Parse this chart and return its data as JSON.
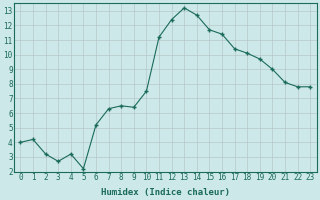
{
  "x": [
    0,
    1,
    2,
    3,
    4,
    5,
    6,
    7,
    8,
    9,
    10,
    11,
    12,
    13,
    14,
    15,
    16,
    17,
    18,
    19,
    20,
    21,
    22,
    23
  ],
  "y": [
    4.0,
    4.2,
    3.2,
    2.7,
    3.2,
    2.2,
    5.2,
    6.3,
    6.5,
    6.4,
    7.5,
    11.2,
    12.4,
    13.2,
    12.7,
    11.7,
    11.4,
    10.4,
    10.1,
    9.7,
    9.0,
    8.1,
    7.8,
    7.8
  ],
  "title": "",
  "xlabel": "Humidex (Indice chaleur)",
  "ylabel": "",
  "xlim": [
    -0.5,
    23.5
  ],
  "ylim": [
    2.0,
    13.5
  ],
  "yticks": [
    2,
    3,
    4,
    5,
    6,
    7,
    8,
    9,
    10,
    11,
    12,
    13
  ],
  "xticks": [
    0,
    1,
    2,
    3,
    4,
    5,
    6,
    7,
    8,
    9,
    10,
    11,
    12,
    13,
    14,
    15,
    16,
    17,
    18,
    19,
    20,
    21,
    22,
    23
  ],
  "line_color": "#1a6b5a",
  "marker_color": "#1a6b5a",
  "bg_color": "#cce8e8",
  "grid_major_color": "#b8c8c8",
  "grid_minor_color": "#d4e4e4",
  "axis_label_color": "#1a6b5a",
  "tick_label_color": "#1a6b5a",
  "tick_fontsize": 5.5,
  "xlabel_fontsize": 6.5
}
